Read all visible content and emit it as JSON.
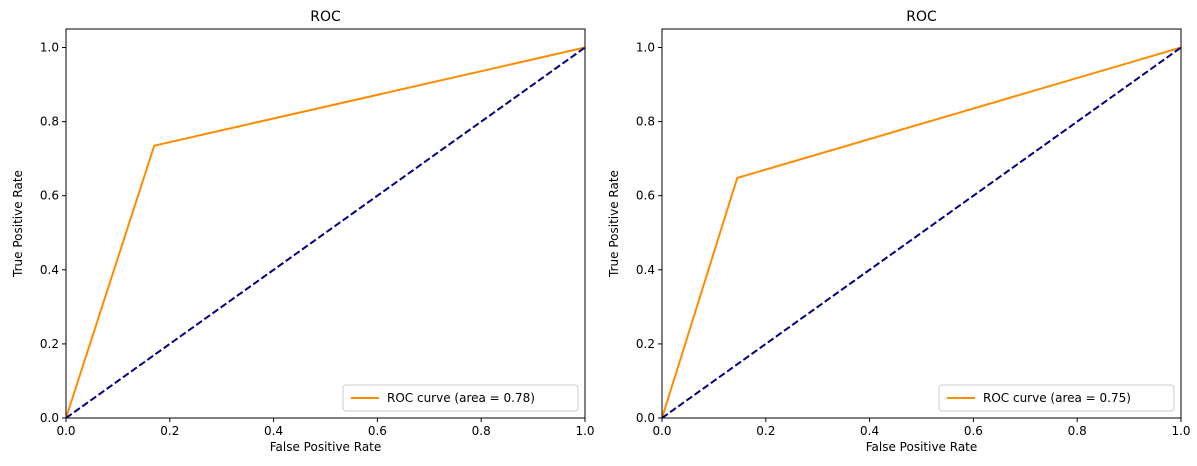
{
  "chart_data": [
    {
      "type": "line",
      "title": "ROC",
      "xlabel": "False Positive Rate",
      "ylabel": "True Positive Rate",
      "xlim": [
        0.0,
        1.0
      ],
      "ylim": [
        0.0,
        1.05
      ],
      "xticks": [
        "0.0",
        "0.2",
        "0.4",
        "0.6",
        "0.8",
        "1.0"
      ],
      "yticks": [
        "0.0",
        "0.2",
        "0.4",
        "0.6",
        "0.8",
        "1.0"
      ],
      "grid": false,
      "legend_position": "lower-right",
      "series": [
        {
          "name": "ROC curve (area = 0.78)",
          "color": "#ff8c00",
          "style": "solid",
          "x": [
            0.0,
            0.17,
            1.0
          ],
          "y": [
            0.0,
            0.735,
            1.0
          ]
        },
        {
          "color": "#000080",
          "style": "dashed",
          "x": [
            0.0,
            1.0
          ],
          "y": [
            0.0,
            1.0
          ]
        }
      ]
    },
    {
      "type": "line",
      "title": "ROC",
      "xlabel": "False Positive Rate",
      "ylabel": "True Positive Rate",
      "xlim": [
        0.0,
        1.0
      ],
      "ylim": [
        0.0,
        1.05
      ],
      "xticks": [
        "0.0",
        "0.2",
        "0.4",
        "0.6",
        "0.8",
        "1.0"
      ],
      "yticks": [
        "0.0",
        "0.2",
        "0.4",
        "0.6",
        "0.8",
        "1.0"
      ],
      "grid": false,
      "legend_position": "lower-right",
      "series": [
        {
          "name": "ROC curve (area = 0.75)",
          "color": "#ff8c00",
          "style": "solid",
          "x": [
            0.0,
            0.145,
            1.0
          ],
          "y": [
            0.0,
            0.648,
            1.0
          ]
        },
        {
          "color": "#000080",
          "style": "dashed",
          "x": [
            0.0,
            1.0
          ],
          "y": [
            0.0,
            1.0
          ]
        }
      ]
    }
  ]
}
